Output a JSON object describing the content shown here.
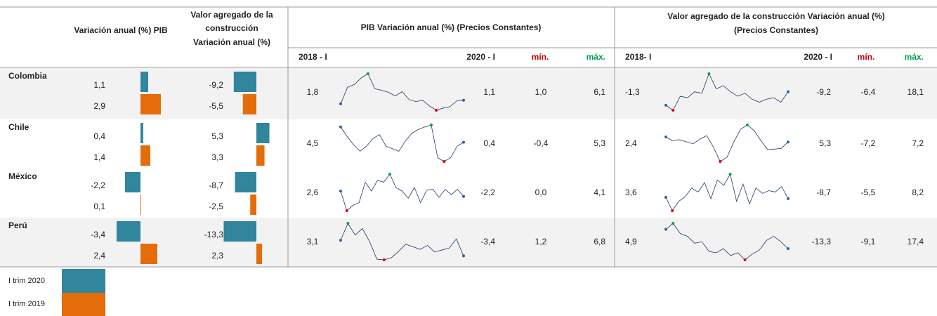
{
  "headers": {
    "pib": "Variación anual (%) PIB",
    "construction": [
      "Valor agregado de la",
      "construcción",
      "Variación anual (%)"
    ],
    "pib_sparkline": [
      "PIB Variación anual (%) (Precios Constantes)"
    ],
    "construction_sparkline": [
      "Valor agregado de la construcción  Variación anual (%)",
      "(Precios Constantes)"
    ],
    "pib_sub": [
      "2018 - I",
      "2020 - I",
      "mín.",
      "máx."
    ],
    "construction_sub": [
      "2018- I",
      "2020 - I",
      "mín.",
      "máx."
    ]
  },
  "countries": [
    {
      "name": "Colombia",
      "pib": {
        "values": [
          1.1,
          2.9
        ],
        "value_labels": [
          "1,1",
          "2,9"
        ]
      },
      "construction": {
        "values": [
          -9.2,
          -5.5
        ],
        "value_labels": [
          "-9,2",
          "-5,5"
        ]
      },
      "pib_spark": {
        "stats": [
          {
            "value": 1.8,
            "label": "1,8"
          },
          {
            "value": 1.1,
            "label": "1,1"
          },
          {
            "value": 1.0,
            "label": "1,0"
          },
          {
            "value": 6.1,
            "label": "6,1"
          }
        ],
        "values": [
          1.9,
          4.2,
          4.6,
          5.5,
          6.1,
          4.0,
          3.8,
          3.5,
          3.0,
          3.6,
          2.5,
          2.2,
          2.4,
          1.6,
          1.0,
          1.3,
          1.5,
          2.3,
          2.4
        ]
      },
      "construction_spark": {
        "stats": [
          {
            "value": -1.3,
            "label": "-1,3"
          },
          {
            "value": -9.2,
            "label": "-9,2"
          },
          {
            "value": -6.4,
            "label": "-6,4"
          },
          {
            "value": 18.1,
            "label": "18,1"
          }
        ],
        "values": [
          -3,
          -6.4,
          3,
          2,
          6,
          5,
          18.1,
          8,
          10,
          6,
          3,
          5,
          1,
          -1,
          1,
          2,
          -1,
          6
        ]
      }
    },
    {
      "name": "Chile",
      "pib": {
        "values": [
          0.4,
          1.4
        ],
        "value_labels": [
          "0,4",
          "1,4"
        ]
      },
      "construction": {
        "values": [
          5.3,
          3.3
        ],
        "value_labels": [
          "5,3",
          "3,3"
        ]
      },
      "pib_spark": {
        "stats": [
          {
            "value": 4.5,
            "label": "4,5"
          },
          {
            "value": 0.4,
            "label": "0,4"
          },
          {
            "value": -0.4,
            "label": "-0,4"
          },
          {
            "value": 5.3,
            "label": "5,3"
          }
        ],
        "values": [
          5.0,
          3.5,
          2.2,
          1.2,
          2.0,
          3.2,
          3.8,
          2.0,
          1.6,
          1.2,
          2.8,
          4.0,
          4.6,
          5.0,
          5.3,
          0.2,
          -0.4,
          0.2,
          2.0,
          2.6
        ]
      },
      "construction_spark": {
        "stats": [
          {
            "value": 2.4,
            "label": "2,4"
          },
          {
            "value": 5.3,
            "label": "5,3"
          },
          {
            "value": -7.2,
            "label": "-7,2"
          },
          {
            "value": 7.2,
            "label": "7,2"
          }
        ],
        "values": [
          2.5,
          1.0,
          1.4,
          0.6,
          -0.2,
          1.6,
          3.0,
          -1.5,
          -7.2,
          -5.5,
          0.5,
          5.5,
          7.2,
          5.0,
          1.0,
          -2.5,
          -2.3,
          -2.0,
          0.5
        ]
      }
    },
    {
      "name": "México",
      "pib": {
        "values": [
          -2.2,
          0.1
        ],
        "value_labels": [
          "-2,2",
          "0,1"
        ]
      },
      "construction": {
        "values": [
          -8.7,
          -2.5
        ],
        "value_labels": [
          "-8,7",
          "-2,5"
        ]
      },
      "pib_spark": {
        "stats": [
          {
            "value": 2.6,
            "label": "2,6"
          },
          {
            "value": -2.2,
            "label": "-2,2"
          },
          {
            "value": 0.0,
            "label": "0,0"
          },
          {
            "value": 4.1,
            "label": "4,1"
          }
        ],
        "values": [
          2.2,
          0.0,
          0.6,
          0.9,
          3.2,
          2.2,
          3.4,
          3.2,
          4.1,
          2.6,
          2.2,
          1.4,
          2.6,
          0.9,
          2.3,
          2.4,
          1.5,
          2.4,
          1.8,
          2.4,
          1.6
        ]
      },
      "construction_spark": {
        "stats": [
          {
            "value": 3.6,
            "label": "3,6"
          },
          {
            "value": -8.7,
            "label": "-8,7"
          },
          {
            "value": -5.5,
            "label": "-5,5"
          },
          {
            "value": 8.2,
            "label": "8,2"
          }
        ],
        "values": [
          -0.5,
          -5.5,
          -2.0,
          -0.3,
          3.0,
          1.5,
          5.0,
          -1.0,
          6.0,
          4.0,
          8.2,
          -2.0,
          4.5,
          -3.0,
          3.0,
          1.0,
          2.0,
          1.5,
          3.5,
          -1.0
        ]
      }
    },
    {
      "name": "Perú",
      "pib": {
        "values": [
          -3.4,
          2.4
        ],
        "value_labels": [
          "-3,4",
          "2,4"
        ]
      },
      "construction": {
        "values": [
          -13.3,
          2.3
        ],
        "value_labels": [
          "-13,3",
          "2,3"
        ]
      },
      "pib_spark": {
        "stats": [
          {
            "value": 3.1,
            "label": "3,1"
          },
          {
            "value": -3.4,
            "label": "-3,4"
          },
          {
            "value": 1.2,
            "label": "1,2"
          },
          {
            "value": 6.8,
            "label": "6,8"
          }
        ],
        "values": [
          4.2,
          6.8,
          5.0,
          6.0,
          4.0,
          1.3,
          1.2,
          1.5,
          2.5,
          3.6,
          3.2,
          2.8,
          3.4,
          2.4,
          2.7,
          3.0,
          4.4,
          1.8
        ]
      },
      "construction_spark": {
        "stats": [
          {
            "value": 4.9,
            "label": "4,9"
          },
          {
            "value": -13.3,
            "label": "-13,3"
          },
          {
            "value": -9.1,
            "label": "-9,1"
          },
          {
            "value": 17.4,
            "label": "17,4"
          }
        ],
        "values": [
          13,
          17.4,
          10,
          8,
          3,
          4,
          -3,
          -4,
          -1,
          -6,
          -4,
          -9.1,
          -5,
          -2,
          5,
          8,
          4,
          -1
        ]
      }
    }
  ],
  "legend": [
    {
      "label": "I trim 2020",
      "color": "#31859c"
    },
    {
      "label": "I trim 2019",
      "color": "#e46c0a"
    }
  ]
}
